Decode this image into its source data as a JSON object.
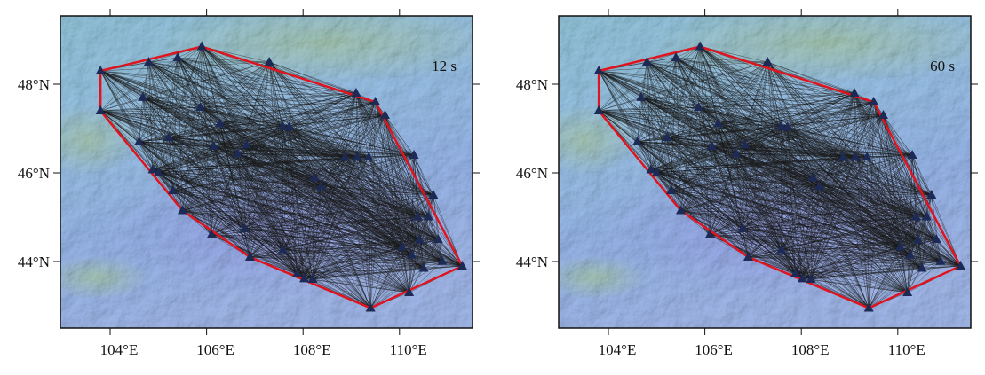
{
  "panels": [
    {
      "label": "12 s"
    },
    {
      "label": "60 s"
    }
  ],
  "x_labels": [
    "104°E",
    "106°E",
    "108°E",
    "110°E"
  ],
  "y_labels": [
    "48°N",
    "46°N",
    "44°N"
  ]
}
